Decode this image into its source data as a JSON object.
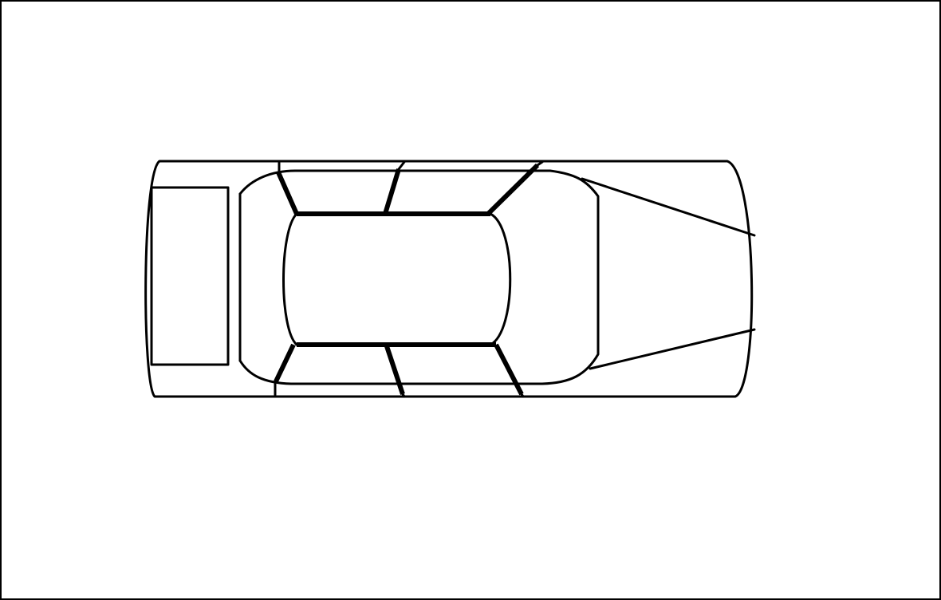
{
  "diagram": {
    "subject": "car-top-view-line-drawing",
    "line_color": "#000000",
    "background_color": "#ffffff"
  }
}
